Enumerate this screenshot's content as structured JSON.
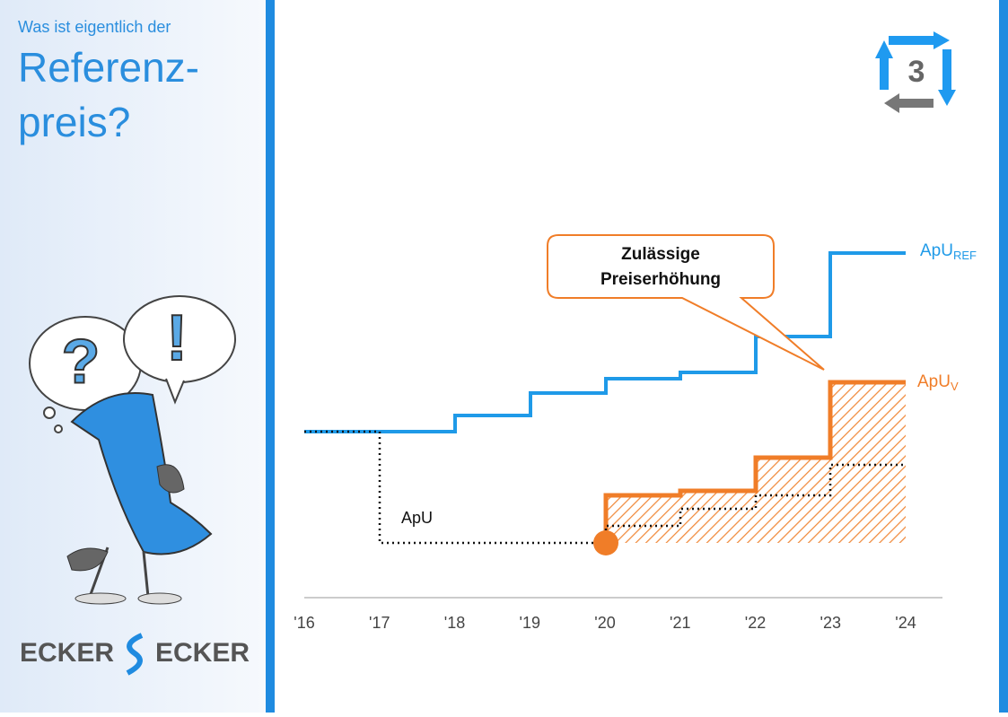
{
  "header": {
    "subtitle": "Was ist eigentlich der",
    "title_lines": [
      "Referenz-",
      "preis?"
    ]
  },
  "badge": "3",
  "callout": [
    "Zulässige",
    "Preiserhöhung"
  ],
  "labels": {
    "apu_ref": {
      "main": "ApU",
      "sub": "REF"
    },
    "apu_v": {
      "main": "ApU",
      "sub": "V"
    },
    "apu": "ApU"
  },
  "x_axis": [
    "'16",
    "'17",
    "'18",
    "'19",
    "'20",
    "'21",
    "'22",
    "'23",
    "'24"
  ],
  "logo": {
    "left": "ECKER",
    "right": "ECKER"
  }
}
